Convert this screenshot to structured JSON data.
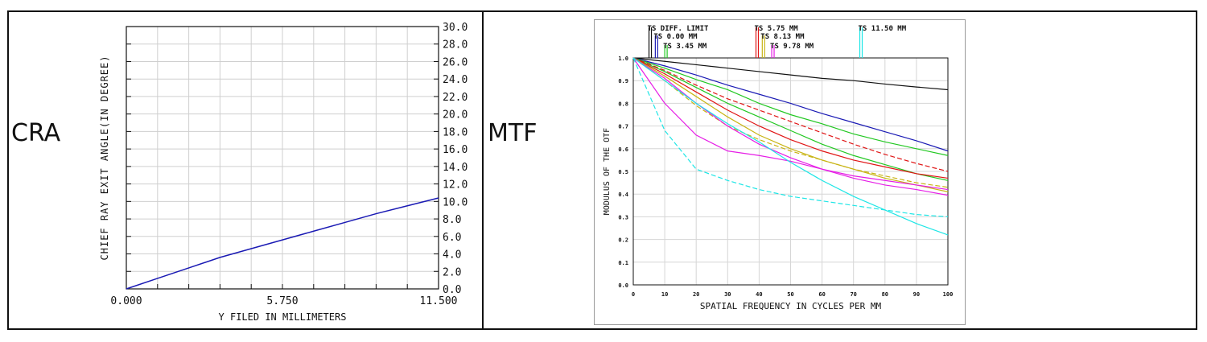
{
  "panels": {
    "cra_label": "CRA",
    "mtf_label": "MTF"
  },
  "chart_data": [
    {
      "type": "line",
      "title": "CRA",
      "xlabel": "Y FILED IN MILLIMETERS",
      "ylabel": "CHIEF RAY EXIT ANGLE(IN DEGREE)",
      "xlim": [
        0,
        11.5
      ],
      "ylim": [
        0,
        30
      ],
      "x_tick_labels": [
        "0.000",
        "5.750",
        "11.500"
      ],
      "y_tick_labels": [
        "0.0",
        "2.0",
        "4.0",
        "6.0",
        "8.0",
        "10.0",
        "12.0",
        "14.0",
        "16.0",
        "18.0",
        "20.0",
        "22.0",
        "24.0",
        "26.0",
        "28.0",
        "30.0"
      ],
      "y_ticks": [
        0,
        2,
        4,
        6,
        8,
        10,
        12,
        14,
        16,
        18,
        20,
        22,
        24,
        26,
        28,
        30
      ],
      "color": "#1a1ab4",
      "series": [
        {
          "name": "CRA",
          "x": [
            0,
            1.15,
            2.3,
            3.45,
            4.6,
            5.75,
            6.9,
            8.05,
            9.2,
            10.35,
            11.5
          ],
          "values": [
            0,
            1.2,
            2.4,
            3.6,
            4.6,
            5.6,
            6.6,
            7.6,
            8.6,
            9.5,
            10.4
          ]
        }
      ]
    },
    {
      "type": "line",
      "title": "MTF",
      "xlabel": "SPATIAL FREQUENCY IN CYCLES PER MM",
      "ylabel": "MODULUS OF THE OTF",
      "xlim": [
        0,
        100
      ],
      "ylim": [
        0,
        1
      ],
      "x_tick_labels": [
        "0",
        "10",
        "20",
        "30",
        "40",
        "50",
        "60",
        "70",
        "80",
        "90",
        "100"
      ],
      "y_tick_labels": [
        "0.0",
        "0.1",
        "0.2",
        "0.3",
        "0.4",
        "0.5",
        "0.6",
        "0.7",
        "0.8",
        "0.9",
        "1.0"
      ],
      "x": [
        0,
        10,
        20,
        30,
        40,
        50,
        60,
        70,
        80,
        90,
        100
      ],
      "legend": [
        {
          "text": "TS DIFF. LIMIT",
          "freq": 5,
          "color": "#111111"
        },
        {
          "text": "TS 0.00 MM",
          "freq": 7,
          "color": "#1a1ab4"
        },
        {
          "text": "TS 3.45 MM",
          "freq": 10,
          "color": "#22c822"
        },
        {
          "text": "TS 5.75 MM",
          "freq": 39,
          "color": "#e01414"
        },
        {
          "text": "TS 8.13 MM",
          "freq": 41,
          "color": "#c8b414"
        },
        {
          "text": "TS 9.78 MM",
          "freq": 44,
          "color": "#e61ee6"
        },
        {
          "text": "TS 11.50 MM",
          "freq": 72,
          "color": "#1ee6e6"
        }
      ],
      "series": [
        {
          "name": "TS DIFF. LIMIT",
          "color": "#111111",
          "dashed": false,
          "values": [
            1.0,
            0.985,
            0.97,
            0.955,
            0.94,
            0.925,
            0.91,
            0.9,
            0.885,
            0.872,
            0.86
          ]
        },
        {
          "name": "TS 0.00 MM",
          "color": "#1a1ab4",
          "dashed": false,
          "values": [
            1.0,
            0.965,
            0.925,
            0.88,
            0.84,
            0.8,
            0.755,
            0.715,
            0.675,
            0.635,
            0.59
          ]
        },
        {
          "name": "TS 3.45 MM T",
          "color": "#22c822",
          "dashed": false,
          "values": [
            1.0,
            0.955,
            0.905,
            0.86,
            0.8,
            0.75,
            0.71,
            0.665,
            0.63,
            0.6,
            0.57
          ]
        },
        {
          "name": "TS 3.45 MM S",
          "color": "#22c822",
          "dashed": false,
          "values": [
            1.0,
            0.94,
            0.87,
            0.8,
            0.74,
            0.68,
            0.62,
            0.57,
            0.53,
            0.49,
            0.46
          ]
        },
        {
          "name": "TS 5.75 MM T",
          "color": "#e01414",
          "dashed": true,
          "values": [
            1.0,
            0.945,
            0.88,
            0.82,
            0.77,
            0.72,
            0.67,
            0.62,
            0.575,
            0.535,
            0.5
          ]
        },
        {
          "name": "TS 5.75 MM S",
          "color": "#e01414",
          "dashed": false,
          "values": [
            1.0,
            0.93,
            0.85,
            0.77,
            0.7,
            0.64,
            0.59,
            0.55,
            0.52,
            0.49,
            0.47
          ]
        },
        {
          "name": "TS 8.13 MM T",
          "color": "#c8b414",
          "dashed": true,
          "values": [
            1.0,
            0.9,
            0.79,
            0.7,
            0.64,
            0.59,
            0.55,
            0.51,
            0.48,
            0.45,
            0.43
          ]
        },
        {
          "name": "TS 8.13 MM S",
          "color": "#c8b414",
          "dashed": false,
          "values": [
            1.0,
            0.92,
            0.83,
            0.74,
            0.66,
            0.6,
            0.55,
            0.51,
            0.47,
            0.44,
            0.41
          ]
        },
        {
          "name": "TS 9.78 MM T",
          "color": "#e61ee6",
          "dashed": false,
          "values": [
            1.0,
            0.8,
            0.66,
            0.59,
            0.57,
            0.545,
            0.51,
            0.48,
            0.46,
            0.44,
            0.42
          ]
        },
        {
          "name": "TS 9.78 MM S",
          "color": "#e61ee6",
          "dashed": false,
          "values": [
            1.0,
            0.91,
            0.8,
            0.7,
            0.62,
            0.56,
            0.51,
            0.47,
            0.44,
            0.42,
            0.395
          ]
        },
        {
          "name": "TS 11.50 MM T",
          "color": "#1ee6e6",
          "dashed": true,
          "values": [
            1.0,
            0.68,
            0.51,
            0.46,
            0.42,
            0.39,
            0.37,
            0.35,
            0.33,
            0.31,
            0.3
          ]
        },
        {
          "name": "TS 11.50 MM S",
          "color": "#1ee6e6",
          "dashed": false,
          "values": [
            1.0,
            0.9,
            0.8,
            0.71,
            0.63,
            0.54,
            0.46,
            0.39,
            0.33,
            0.27,
            0.22
          ]
        }
      ]
    }
  ]
}
